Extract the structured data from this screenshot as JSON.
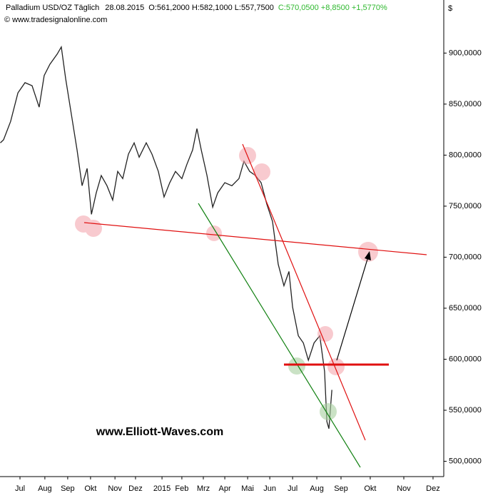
{
  "chart_data": {
    "type": "line",
    "title": "Palladium USD/OZ Täglich",
    "date": "28.08.2015",
    "ohl": "O:561,2000 H:582,1000 L:557,7500",
    "close": "C:570,0500 +8,8500 +1,5770%",
    "source": "© www.tradesignalonline.com",
    "currency": "$",
    "annotation": "www.Elliott-Waves.com",
    "series": [
      {
        "name": "Palladium",
        "color": "#222222",
        "x": [
          -0.36,
          -0.22,
          0.09,
          0.41,
          0.72,
          1.03,
          1.34,
          1.56,
          1.81,
          2.13,
          2.31,
          2.5,
          2.75,
          3,
          3.22,
          3.44,
          3.63,
          3.84,
          4.06,
          4.31,
          4.56,
          4.78,
          5,
          5.25,
          5.5,
          5.72,
          6.03,
          6.28,
          6.56,
          6.81,
          7.06,
          7.31,
          7.59,
          7.81,
          8.06,
          8.25,
          8.44,
          8.69,
          8.94,
          9.16,
          9.47,
          9.78,
          10.09,
          10.31,
          10.56,
          10.81,
          11.06,
          11.31,
          11.56,
          11.81,
          12.06,
          12.28,
          12.44,
          12.69,
          12.91,
          13.13,
          13.38,
          13.63,
          13.84,
          13.94,
          14.03,
          14.16
        ],
        "values": [
          812,
          815,
          833,
          861,
          871,
          868,
          847,
          878,
          889,
          899,
          906,
          875,
          840,
          805,
          770,
          787,
          742,
          763,
          780,
          770,
          756,
          784,
          777,
          801,
          812,
          798,
          812,
          801,
          784,
          759,
          773,
          784,
          777,
          791,
          805,
          826,
          805,
          780,
          749,
          763,
          773,
          770,
          777,
          794,
          784,
          780,
          773,
          752,
          735,
          693,
          672,
          686,
          651,
          623,
          616,
          599,
          616,
          623,
          588,
          539,
          532,
          570
        ]
      }
    ],
    "xlim": [
      -0.375,
      19.06
    ],
    "xticks": [
      {
        "value": 0.5,
        "label": "Jul"
      },
      {
        "value": 1.59,
        "label": "Aug"
      },
      {
        "value": 2.59,
        "label": "Sep"
      },
      {
        "value": 3.59,
        "label": "Okt"
      },
      {
        "value": 4.66,
        "label": "Nov"
      },
      {
        "value": 5.56,
        "label": "Dez"
      },
      {
        "value": 6.72,
        "label": "2015"
      },
      {
        "value": 7.59,
        "label": "Feb"
      },
      {
        "value": 8.53,
        "label": "Mrz"
      },
      {
        "value": 9.47,
        "label": "Apr"
      },
      {
        "value": 10.47,
        "label": "Mai"
      },
      {
        "value": 11.44,
        "label": "Jun"
      },
      {
        "value": 12.44,
        "label": "Jul"
      },
      {
        "value": 13.5,
        "label": "Aug"
      },
      {
        "value": 14.56,
        "label": "Sep"
      },
      {
        "value": 15.84,
        "label": "Okt"
      },
      {
        "value": 17.31,
        "label": "Nov"
      },
      {
        "value": 18.59,
        "label": "Dez"
      }
    ],
    "ylim": [
      485,
      952
    ],
    "yticks": [
      {
        "value": 500,
        "label": "500,0000"
      },
      {
        "value": 550,
        "label": "550,0000"
      },
      {
        "value": 600,
        "label": "600,0000"
      },
      {
        "value": 650,
        "label": "650,0000"
      },
      {
        "value": 700,
        "label": "700,0000"
      },
      {
        "value": 750,
        "label": "750,0000"
      },
      {
        "value": 800,
        "label": "800,0000"
      },
      {
        "value": 850,
        "label": "850,0000"
      },
      {
        "value": 900,
        "label": "900,0000"
      }
    ]
  }
}
